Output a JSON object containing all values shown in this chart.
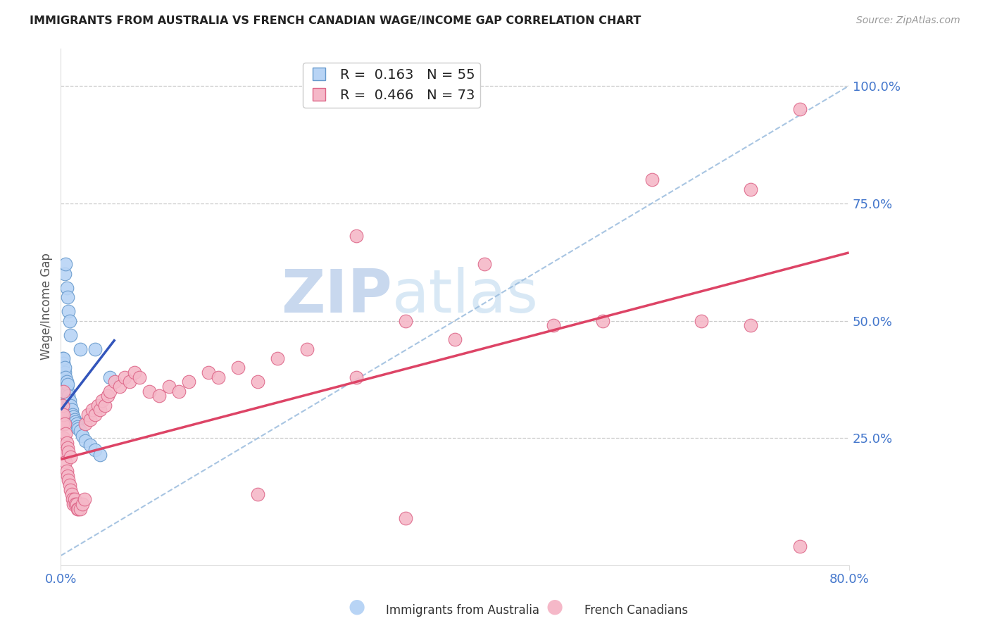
{
  "title": "IMMIGRANTS FROM AUSTRALIA VS FRENCH CANADIAN WAGE/INCOME GAP CORRELATION CHART",
  "source": "Source: ZipAtlas.com",
  "ylabel": "Wage/Income Gap",
  "xlim": [
    0.0,
    0.8
  ],
  "ylim": [
    -0.02,
    1.08
  ],
  "ytick_positions": [
    0.25,
    0.5,
    0.75,
    1.0
  ],
  "ytick_labels": [
    "25.0%",
    "50.0%",
    "75.0%",
    "100.0%"
  ],
  "blue_R": 0.163,
  "blue_N": 55,
  "pink_R": 0.466,
  "pink_N": 73,
  "blue_color": "#b8d4f5",
  "blue_edge_color": "#6699cc",
  "pink_color": "#f5b8c8",
  "pink_edge_color": "#dd6688",
  "blue_line_color": "#3355bb",
  "pink_line_color": "#dd4466",
  "gray_line_color": "#99bbdd",
  "watermark_zip": "ZIP",
  "watermark_atlas": "atlas",
  "background_color": "#ffffff",
  "grid_color": "#cccccc",
  "title_color": "#222222",
  "axis_tick_color": "#4477cc",
  "legend_label1": "Immigrants from Australia",
  "legend_label2": "French Canadians",
  "blue_scatter_x": [
    0.001,
    0.001,
    0.001,
    0.002,
    0.002,
    0.002,
    0.002,
    0.003,
    0.003,
    0.003,
    0.003,
    0.003,
    0.004,
    0.004,
    0.004,
    0.004,
    0.005,
    0.005,
    0.005,
    0.006,
    0.006,
    0.006,
    0.007,
    0.007,
    0.007,
    0.008,
    0.008,
    0.009,
    0.009,
    0.01,
    0.01,
    0.011,
    0.012,
    0.013,
    0.014,
    0.015,
    0.016,
    0.017,
    0.018,
    0.02,
    0.022,
    0.025,
    0.03,
    0.035,
    0.04,
    0.004,
    0.005,
    0.006,
    0.007,
    0.008,
    0.009,
    0.01,
    0.02,
    0.035,
    0.05
  ],
  "blue_scatter_y": [
    0.395,
    0.405,
    0.415,
    0.38,
    0.39,
    0.4,
    0.42,
    0.37,
    0.385,
    0.395,
    0.41,
    0.42,
    0.36,
    0.375,
    0.39,
    0.4,
    0.355,
    0.37,
    0.38,
    0.345,
    0.36,
    0.37,
    0.335,
    0.35,
    0.365,
    0.325,
    0.34,
    0.315,
    0.33,
    0.305,
    0.32,
    0.31,
    0.3,
    0.295,
    0.29,
    0.285,
    0.28,
    0.275,
    0.27,
    0.265,
    0.255,
    0.245,
    0.235,
    0.225,
    0.215,
    0.6,
    0.62,
    0.57,
    0.55,
    0.52,
    0.5,
    0.47,
    0.44,
    0.44,
    0.38
  ],
  "pink_scatter_x": [
    0.001,
    0.002,
    0.002,
    0.003,
    0.003,
    0.003,
    0.004,
    0.004,
    0.005,
    0.005,
    0.006,
    0.006,
    0.007,
    0.007,
    0.008,
    0.008,
    0.009,
    0.01,
    0.01,
    0.011,
    0.012,
    0.013,
    0.014,
    0.015,
    0.016,
    0.017,
    0.018,
    0.02,
    0.022,
    0.024,
    0.025,
    0.028,
    0.03,
    0.032,
    0.035,
    0.038,
    0.04,
    0.042,
    0.045,
    0.048,
    0.05,
    0.055,
    0.06,
    0.065,
    0.07,
    0.075,
    0.08,
    0.09,
    0.1,
    0.11,
    0.12,
    0.13,
    0.15,
    0.16,
    0.18,
    0.2,
    0.22,
    0.25,
    0.3,
    0.35,
    0.4,
    0.43,
    0.5,
    0.55,
    0.6,
    0.65,
    0.7,
    0.7,
    0.75,
    0.3,
    0.2,
    0.35,
    0.75
  ],
  "pink_scatter_y": [
    0.3,
    0.28,
    0.32,
    0.25,
    0.3,
    0.35,
    0.22,
    0.28,
    0.2,
    0.26,
    0.18,
    0.24,
    0.17,
    0.23,
    0.16,
    0.22,
    0.15,
    0.14,
    0.21,
    0.13,
    0.12,
    0.11,
    0.12,
    0.11,
    0.11,
    0.1,
    0.1,
    0.1,
    0.11,
    0.12,
    0.28,
    0.3,
    0.29,
    0.31,
    0.3,
    0.32,
    0.31,
    0.33,
    0.32,
    0.34,
    0.35,
    0.37,
    0.36,
    0.38,
    0.37,
    0.39,
    0.38,
    0.35,
    0.34,
    0.36,
    0.35,
    0.37,
    0.39,
    0.38,
    0.4,
    0.37,
    0.42,
    0.44,
    0.38,
    0.5,
    0.46,
    0.62,
    0.49,
    0.5,
    0.8,
    0.5,
    0.49,
    0.78,
    0.95,
    0.68,
    0.13,
    0.08,
    0.02
  ],
  "blue_line_x0": 0.0,
  "blue_line_x1": 0.055,
  "blue_line_y0": 0.31,
  "blue_line_y1": 0.46,
  "pink_line_x0": 0.0,
  "pink_line_x1": 0.8,
  "pink_line_y0": 0.205,
  "pink_line_y1": 0.645,
  "gray_line_x0": 0.0,
  "gray_line_x1": 0.8,
  "gray_line_y0": 0.0,
  "gray_line_y1": 1.0
}
